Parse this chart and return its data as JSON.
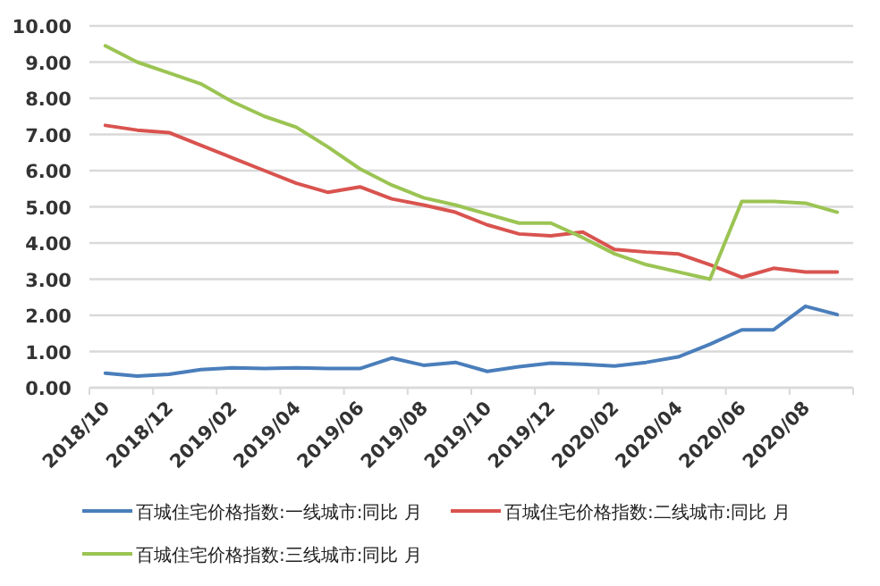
{
  "chart_data": {
    "type": "line",
    "categories": [
      "2018/10",
      null,
      "2018/12",
      null,
      "2019/02",
      null,
      "2019/04",
      null,
      "2019/06",
      null,
      "2019/08",
      null,
      "2019/10",
      null,
      "2019/12",
      null,
      "2020/02",
      null,
      "2020/04",
      null,
      "2020/06",
      null,
      "2020/08",
      null
    ],
    "series": [
      {
        "name": "百城住宅价格指数:一线城市:同比 月",
        "color": "#4a7ebb",
        "values": [
          0.4,
          0.32,
          0.37,
          0.5,
          0.55,
          0.53,
          0.55,
          0.53,
          0.53,
          0.82,
          0.62,
          0.7,
          0.45,
          0.58,
          0.68,
          0.65,
          0.6,
          0.7,
          0.85,
          1.2,
          1.6,
          1.6,
          2.25,
          2.02
        ]
      },
      {
        "name": "百城住宅价格指数:二线城市:同比 月",
        "color": "#d9534f",
        "values": [
          7.25,
          7.12,
          7.05,
          6.7,
          6.35,
          6.0,
          5.65,
          5.4,
          5.55,
          5.22,
          5.05,
          4.85,
          4.5,
          4.25,
          4.2,
          4.3,
          3.82,
          3.75,
          3.7,
          3.4,
          3.05,
          3.3,
          3.2,
          3.2
        ]
      },
      {
        "name": "百城住宅价格指数:三线城市:同比 月",
        "color": "#9bc453",
        "values": [
          9.45,
          9.0,
          8.7,
          8.4,
          7.9,
          7.5,
          7.2,
          6.65,
          6.05,
          5.6,
          5.25,
          5.05,
          4.8,
          4.55,
          4.55,
          4.15,
          3.7,
          3.4,
          3.2,
          3.0,
          5.15,
          5.15,
          5.1,
          4.85
        ]
      }
    ],
    "ylim": [
      0,
      10
    ],
    "yticks": [
      {
        "value": 0,
        "label": "0.00"
      },
      {
        "value": 1,
        "label": "1.00"
      },
      {
        "value": 2,
        "label": "2.00"
      },
      {
        "value": 3,
        "label": "3.00"
      },
      {
        "value": 4,
        "label": "4.00"
      },
      {
        "value": 5,
        "label": "5.00"
      },
      {
        "value": 6,
        "label": "6.00"
      },
      {
        "value": 7,
        "label": "7.00"
      },
      {
        "value": 8,
        "label": "8.00"
      },
      {
        "value": 9,
        "label": "9.00"
      },
      {
        "value": 10,
        "label": "10.00"
      }
    ],
    "grid": "y",
    "legend": "bottom",
    "marker": "none",
    "line_style": "solid"
  }
}
